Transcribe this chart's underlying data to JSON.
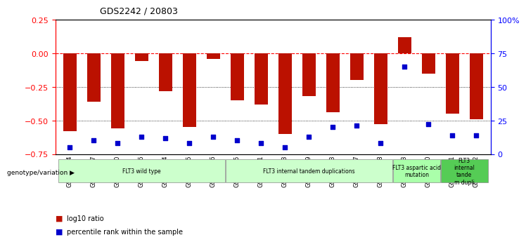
{
  "title": "GDS2242 / 20803",
  "samples": [
    "GSM48254",
    "GSM48507",
    "GSM48510",
    "GSM48546",
    "GSM48584",
    "GSM48585",
    "GSM48586",
    "GSM48255",
    "GSM48501",
    "GSM48503",
    "GSM48539",
    "GSM48543",
    "GSM48587",
    "GSM48588",
    "GSM48253",
    "GSM48350",
    "GSM48541",
    "GSM48252"
  ],
  "log10_ratio": [
    -0.58,
    -0.36,
    -0.56,
    -0.06,
    -0.28,
    -0.55,
    -0.04,
    -0.35,
    -0.38,
    -0.6,
    -0.32,
    -0.44,
    -0.2,
    -0.53,
    0.12,
    -0.15,
    -0.45,
    -0.49
  ],
  "percentile_rank": [
    5,
    10,
    8,
    13,
    12,
    8,
    13,
    10,
    8,
    5,
    13,
    20,
    21,
    8,
    65,
    22,
    14,
    14
  ],
  "bar_color": "#bb1100",
  "dot_color": "#0000cc",
  "ylim_left": [
    -0.75,
    0.25
  ],
  "ylim_right": [
    0,
    100
  ],
  "yticks_left": [
    -0.75,
    -0.5,
    -0.25,
    0,
    0.25
  ],
  "yticks_right": [
    0,
    25,
    50,
    75,
    100
  ],
  "dotted_lines": [
    -0.25,
    -0.5
  ],
  "legend_bar_label": "log10 ratio",
  "legend_dot_label": "percentile rank within the sample",
  "genotype_label": "genotype/variation",
  "group_info": [
    {
      "span": [
        0,
        6
      ],
      "label": "FLT3 wild type",
      "color": "#ccffcc"
    },
    {
      "span": [
        7,
        13
      ],
      "label": "FLT3 internal tandem duplications",
      "color": "#ccffcc"
    },
    {
      "span": [
        14,
        15
      ],
      "label": "FLT3 aspartic acid\nmutation",
      "color": "#aaffaa"
    },
    {
      "span": [
        16,
        17
      ],
      "label": "FLT3\ninternal\ntande\nm dupli",
      "color": "#55cc55"
    }
  ]
}
